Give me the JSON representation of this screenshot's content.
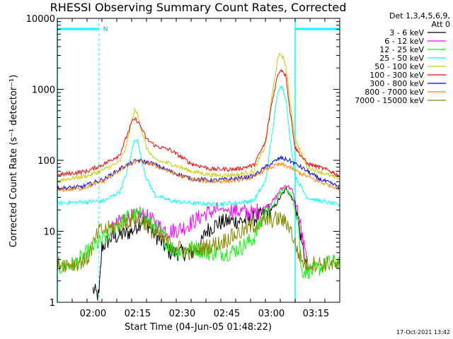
{
  "chart_data": {
    "type": "line",
    "title": "RHESSI Observing Summary Count Rates, Corrected",
    "xlabel": "Start Time (04-Jun-05 01:48:22)",
    "ylabel": "Corrected Count Rate (s⁻¹ detector⁻¹)",
    "yscale": "log",
    "ylim": [
      1,
      10000
    ],
    "xlim_minutes": [
      0,
      95
    ],
    "x_ticks": [
      {
        "t": 12,
        "label": "02:00"
      },
      {
        "t": 27,
        "label": "02:15"
      },
      {
        "t": 42,
        "label": "02:30"
      },
      {
        "t": 57,
        "label": "02:45"
      },
      {
        "t": 72,
        "label": "03:00"
      },
      {
        "t": 87,
        "label": "03:15"
      }
    ],
    "y_ticks": [
      {
        "v": 1,
        "label": "1"
      },
      {
        "v": 10,
        "label": "10"
      },
      {
        "v": 100,
        "label": "100"
      },
      {
        "v": 1000,
        "label": "1000"
      },
      {
        "v": 10000,
        "label": "10000"
      }
    ],
    "legend_header": [
      "Det 1,3,4,5,6,9,",
      "Att 0"
    ],
    "legend_position": "right",
    "series": [
      {
        "name": "3 - 6 keV",
        "color": "#000000",
        "points": [
          [
            12,
            1.5
          ],
          [
            14,
            1.2
          ],
          [
            15,
            6
          ],
          [
            18,
            8
          ],
          [
            22,
            9
          ],
          [
            25,
            10
          ],
          [
            29,
            15
          ],
          [
            32,
            10
          ],
          [
            35,
            7
          ],
          [
            38,
            5
          ],
          [
            42,
            5
          ],
          [
            45,
            5
          ],
          [
            48,
            6
          ],
          [
            50,
            10
          ],
          [
            54,
            13
          ],
          [
            58,
            14
          ],
          [
            62,
            14
          ],
          [
            66,
            15
          ],
          [
            70,
            18
          ],
          [
            73,
            22
          ],
          [
            75,
            30
          ],
          [
            77,
            40
          ],
          [
            80,
            25
          ],
          [
            82,
            8
          ],
          [
            84,
            3
          ]
        ]
      },
      {
        "name": "6 - 12 keV",
        "color": "#ff00ff",
        "points": [
          [
            18,
            10
          ],
          [
            22,
            15
          ],
          [
            26,
            16
          ],
          [
            29,
            17
          ],
          [
            32,
            14
          ],
          [
            35,
            11
          ],
          [
            38,
            10
          ],
          [
            42,
            11
          ],
          [
            46,
            14
          ],
          [
            50,
            18
          ],
          [
            54,
            20
          ],
          [
            58,
            20
          ],
          [
            62,
            19
          ],
          [
            66,
            18
          ],
          [
            70,
            22
          ],
          [
            73,
            28
          ],
          [
            75,
            38
          ],
          [
            77,
            45
          ],
          [
            79,
            38
          ],
          [
            81,
            18
          ],
          [
            83,
            6
          ],
          [
            84,
            3.5
          ]
        ]
      },
      {
        "name": "12 - 25 keV",
        "color": "#00ff00",
        "points": [
          [
            0,
            3
          ],
          [
            6,
            3.5
          ],
          [
            10,
            5
          ],
          [
            12,
            6
          ],
          [
            16,
            8
          ],
          [
            20,
            12
          ],
          [
            24,
            16
          ],
          [
            28,
            17
          ],
          [
            32,
            12
          ],
          [
            35,
            9
          ],
          [
            38,
            6
          ],
          [
            42,
            5
          ],
          [
            46,
            6
          ],
          [
            50,
            5
          ],
          [
            54,
            5
          ],
          [
            58,
            5
          ],
          [
            62,
            6
          ],
          [
            66,
            8
          ],
          [
            70,
            18
          ],
          [
            73,
            25
          ],
          [
            75,
            35
          ],
          [
            77,
            40
          ],
          [
            79,
            30
          ],
          [
            81,
            15
          ],
          [
            82,
            2.8
          ],
          [
            86,
            2.8
          ],
          [
            88,
            3
          ],
          [
            91,
            3.5
          ],
          [
            95,
            3.8
          ]
        ]
      },
      {
        "name": "25 - 50 keV",
        "color": "#00ffff",
        "points": [
          [
            0,
            25
          ],
          [
            10,
            26
          ],
          [
            16,
            27
          ],
          [
            21,
            36
          ],
          [
            23,
            60
          ],
          [
            25,
            130
          ],
          [
            26,
            200
          ],
          [
            27,
            190
          ],
          [
            28,
            120
          ],
          [
            30,
            55
          ],
          [
            33,
            32
          ],
          [
            38,
            27
          ],
          [
            45,
            25
          ],
          [
            52,
            24
          ],
          [
            60,
            25
          ],
          [
            66,
            27
          ],
          [
            70,
            50
          ],
          [
            72,
            200
          ],
          [
            74,
            800
          ],
          [
            75,
            1150
          ],
          [
            76,
            1000
          ],
          [
            77,
            700
          ],
          [
            78,
            250
          ],
          [
            80,
            60
          ],
          [
            84,
            30
          ],
          [
            88,
            27
          ],
          [
            92,
            25
          ],
          [
            95,
            23
          ]
        ]
      },
      {
        "name": "50 - 100 keV",
        "color": "#cccc00",
        "points": [
          [
            0,
            52
          ],
          [
            10,
            60
          ],
          [
            16,
            75
          ],
          [
            21,
            95
          ],
          [
            23,
            150
          ],
          [
            25,
            350
          ],
          [
            26,
            500
          ],
          [
            27,
            450
          ],
          [
            28,
            300
          ],
          [
            30,
            150
          ],
          [
            33,
            100
          ],
          [
            38,
            90
          ],
          [
            45,
            70
          ],
          [
            52,
            62
          ],
          [
            60,
            62
          ],
          [
            66,
            70
          ],
          [
            70,
            160
          ],
          [
            72,
            700
          ],
          [
            74,
            2500
          ],
          [
            75,
            3200
          ],
          [
            76,
            2800
          ],
          [
            77,
            2000
          ],
          [
            78,
            800
          ],
          [
            80,
            200
          ],
          [
            84,
            80
          ],
          [
            88,
            70
          ],
          [
            92,
            60
          ],
          [
            95,
            55
          ]
        ]
      },
      {
        "name": "100 - 300 keV",
        "color": "#ff0000",
        "points": [
          [
            0,
            62
          ],
          [
            10,
            70
          ],
          [
            16,
            90
          ],
          [
            21,
            120
          ],
          [
            23,
            200
          ],
          [
            25,
            340
          ],
          [
            26,
            380
          ],
          [
            27,
            360
          ],
          [
            28,
            300
          ],
          [
            30,
            200
          ],
          [
            33,
            160
          ],
          [
            38,
            140
          ],
          [
            45,
            90
          ],
          [
            52,
            75
          ],
          [
            60,
            75
          ],
          [
            66,
            85
          ],
          [
            70,
            180
          ],
          [
            72,
            600
          ],
          [
            74,
            1500
          ],
          [
            75,
            1900
          ],
          [
            76,
            1800
          ],
          [
            77,
            1500
          ],
          [
            78,
            600
          ],
          [
            80,
            150
          ],
          [
            84,
            90
          ],
          [
            88,
            80
          ],
          [
            92,
            70
          ],
          [
            95,
            60
          ]
        ]
      },
      {
        "name": "300 - 800 keV",
        "color": "#0000ff",
        "points": [
          [
            0,
            40
          ],
          [
            8,
            42
          ],
          [
            16,
            55
          ],
          [
            22,
            80
          ],
          [
            27,
            100
          ],
          [
            32,
            90
          ],
          [
            38,
            70
          ],
          [
            45,
            55
          ],
          [
            52,
            52
          ],
          [
            60,
            55
          ],
          [
            66,
            60
          ],
          [
            70,
            80
          ],
          [
            75,
            108
          ],
          [
            78,
            100
          ],
          [
            82,
            80
          ],
          [
            88,
            55
          ],
          [
            95,
            42
          ]
        ]
      },
      {
        "name": "800 - 7000 keV",
        "color": "#ff8800",
        "points": [
          [
            0,
            38
          ],
          [
            8,
            40
          ],
          [
            16,
            52
          ],
          [
            22,
            78
          ],
          [
            27,
            98
          ],
          [
            32,
            88
          ],
          [
            38,
            68
          ],
          [
            45,
            54
          ],
          [
            52,
            50
          ],
          [
            60,
            52
          ],
          [
            66,
            58
          ],
          [
            70,
            75
          ],
          [
            75,
            88
          ],
          [
            78,
            80
          ],
          [
            82,
            65
          ],
          [
            88,
            50
          ],
          [
            95,
            40
          ]
        ]
      },
      {
        "name": "7000 - 15000 keV",
        "color": "#888800",
        "points": [
          [
            0,
            3.5
          ],
          [
            6,
            3.5
          ],
          [
            10,
            4
          ],
          [
            14,
            10
          ],
          [
            18,
            11
          ],
          [
            22,
            13
          ],
          [
            26,
            15
          ],
          [
            29,
            14
          ],
          [
            32,
            10
          ],
          [
            35,
            8
          ],
          [
            40,
            6
          ],
          [
            45,
            5
          ],
          [
            50,
            6
          ],
          [
            55,
            7
          ],
          [
            60,
            9
          ],
          [
            66,
            12
          ],
          [
            70,
            14
          ],
          [
            75,
            15
          ],
          [
            78,
            12
          ],
          [
            81,
            5
          ],
          [
            83,
            3.5
          ],
          [
            88,
            3.5
          ],
          [
            92,
            3.5
          ],
          [
            95,
            3
          ]
        ]
      }
    ],
    "saa_flag": {
      "label": "N",
      "start": 0,
      "end": 14
    },
    "night_flag": {
      "start": 80,
      "end": 95
    },
    "footer_timestamp": "17-Oct-2021 13:42"
  }
}
